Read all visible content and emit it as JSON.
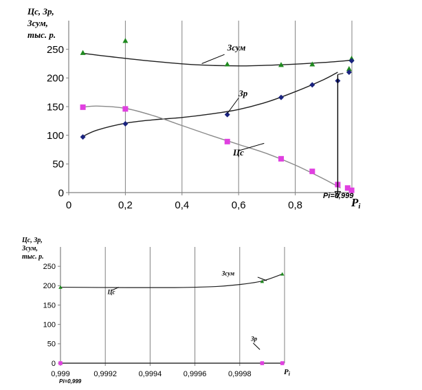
{
  "chart_data": [
    {
      "type": "scatter",
      "title": "",
      "ylabel_lines": [
        "Цс, Зр,",
        "Зсум,",
        "тыс. р."
      ],
      "xlabel": "Pi",
      "xlim": [
        0,
        1
      ],
      "ylim": [
        0,
        300
      ],
      "x_ticks": [
        0,
        0.2,
        0.4,
        0.6,
        0.8
      ],
      "x_tick_labels": [
        "0",
        "0,2",
        "0,4",
        "0,6",
        "0,8"
      ],
      "y_ticks": [
        0,
        50,
        100,
        150,
        200,
        250
      ],
      "y_tick_labels": [
        "0",
        "50",
        "100",
        "150",
        "200",
        "250"
      ],
      "grid": "vertical",
      "series": [
        {
          "name": "Зсум",
          "marker": "triangle",
          "color": "#1f8a1f",
          "x": [
            0.05,
            0.2,
            0.56,
            0.75,
            0.86,
            0.99,
            0.999
          ],
          "y": [
            244,
            265,
            224,
            223,
            224,
            216,
            234
          ],
          "trend_x": [
            0.05,
            0.15,
            0.3,
            0.45,
            0.6,
            0.75,
            0.9,
            1.0
          ],
          "trend_y": [
            243,
            237,
            229,
            223,
            221,
            223,
            227,
            231
          ]
        },
        {
          "name": "Зр",
          "marker": "diamond",
          "color": "#1a237e",
          "x": [
            0.05,
            0.2,
            0.56,
            0.75,
            0.86,
            0.95,
            0.99,
            0.999
          ],
          "y": [
            97,
            120,
            136,
            166,
            188,
            195,
            210,
            230
          ],
          "trend_x": [
            0.05,
            0.1,
            0.2,
            0.3,
            0.4,
            0.5,
            0.6,
            0.7,
            0.8,
            0.9,
            0.95
          ],
          "trend_y": [
            98,
            109,
            121,
            127,
            131,
            137,
            145,
            158,
            176,
            197,
            210
          ]
        },
        {
          "name": "Цс",
          "marker": "square",
          "color": "#e040e0",
          "x": [
            0.05,
            0.2,
            0.56,
            0.75,
            0.86,
            0.95,
            0.985,
            0.999
          ],
          "y": [
            149,
            146,
            89,
            59,
            37,
            14,
            8,
            4
          ],
          "trend_x": [
            0.05,
            0.1,
            0.2,
            0.3,
            0.4,
            0.5,
            0.6,
            0.7,
            0.8,
            0.9,
            0.96
          ],
          "trend_y": [
            149,
            151,
            147,
            134,
            117,
            100,
            84,
            68,
            48,
            24,
            8
          ]
        }
      ],
      "annotations": [
        {
          "label": "Зсум",
          "text_x": 0.56,
          "text_y": 248,
          "line_from": [
            0.55,
            241
          ],
          "line_to": [
            0.47,
            225
          ]
        },
        {
          "label": "Зр",
          "text_x": 0.6,
          "text_y": 168,
          "line_from": [
            0.6,
            165
          ],
          "line_to": [
            0.56,
            138
          ]
        },
        {
          "label": "Цс",
          "text_x": 0.58,
          "text_y": 65,
          "line_from": [
            0.6,
            73
          ],
          "line_to": [
            0.69,
            86
          ]
        },
        {
          "label": "Pi=0,999",
          "text_x": 1.15,
          "text_y": -5,
          "arrow_x": 0.95
        }
      ]
    },
    {
      "type": "scatter",
      "title": "",
      "ylabel_lines": [
        "Цс, Зр,",
        "Зсум,",
        "тыс. р."
      ],
      "xlabel": "Pi",
      "xlim": [
        0.999,
        1.0
      ],
      "ylim": [
        0,
        300
      ],
      "x_ticks": [
        0.999,
        0.9992,
        0.9994,
        0.9996,
        0.9998
      ],
      "x_tick_labels": [
        "0,999",
        "0,9992",
        "0,9994",
        "0,9996",
        "0,9998"
      ],
      "y_ticks": [
        0,
        50,
        100,
        150,
        200,
        250
      ],
      "y_tick_labels": [
        "0",
        "50",
        "100",
        "150",
        "200",
        "250"
      ],
      "grid": "vertical",
      "series": [
        {
          "name": "Зсум",
          "marker": "triangle",
          "color": "#1f8a1f",
          "x": [
            0.999,
            0.9999,
            0.99999
          ],
          "y": [
            196,
            211,
            230
          ],
          "trend_x": [
            0.999,
            0.9993,
            0.9995,
            0.9996,
            0.9997,
            0.9998,
            0.9999,
            0.99999
          ],
          "trend_y": [
            196,
            195,
            195,
            196,
            198,
            203,
            212,
            230
          ]
        },
        {
          "name": "Зр",
          "marker": "square",
          "color": "#e040e0",
          "x": [
            0.999,
            0.9999,
            0.99999
          ],
          "y": [
            0,
            0,
            0
          ],
          "trend_x": [
            0.999,
            0.99999
          ],
          "trend_y": [
            0,
            0
          ]
        }
      ],
      "annotations": [
        {
          "label": "Зсум",
          "text_x": 0.99972,
          "text_y": 226
        },
        {
          "label": "Цс",
          "text_x": 0.99921,
          "text_y": 178
        },
        {
          "label": "Зр",
          "text_x": 0.99985,
          "text_y": 58
        },
        {
          "label": "Pi=0,999",
          "text_x": 0.999,
          "text_y": -30
        }
      ]
    }
  ]
}
